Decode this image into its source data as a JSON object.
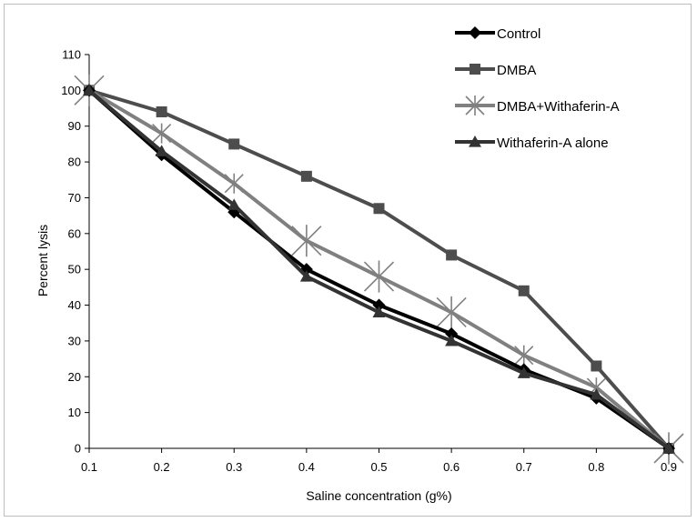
{
  "chart_data": {
    "type": "line",
    "title": "",
    "xlabel": "Saline concentration (g%)",
    "ylabel": "Percent lysis",
    "x": [
      0.1,
      0.2,
      0.3,
      0.4,
      0.5,
      0.6,
      0.7,
      0.8,
      0.9
    ],
    "x_tick_labels": [
      "0.1",
      "0.2",
      "0.3",
      "0.4",
      "0.5",
      "0.6",
      "0.7",
      "0.8",
      "0.9"
    ],
    "ylim": [
      0,
      110
    ],
    "y_ticks": [
      0,
      10,
      20,
      30,
      40,
      50,
      60,
      70,
      80,
      90,
      100,
      110
    ],
    "y_tick_labels": [
      "0",
      "10",
      "20",
      "30",
      "40",
      "50",
      "60",
      "70",
      "80",
      "90",
      "100",
      "110"
    ],
    "grid": false,
    "legend_position": "top-right",
    "series": [
      {
        "name": "Control",
        "color": "#000000",
        "marker": "diamond",
        "values": [
          100,
          82,
          66,
          50,
          40,
          32,
          22,
          14,
          0
        ]
      },
      {
        "name": "DMBA",
        "color": "#4d4d4d",
        "marker": "square",
        "values": [
          100,
          94,
          85,
          76,
          67,
          54,
          44,
          23,
          0
        ]
      },
      {
        "name": "DMBA+Withaferin-A",
        "color": "#808080",
        "marker": "star",
        "values": [
          100,
          88,
          74,
          58,
          48,
          38,
          26,
          17,
          0
        ]
      },
      {
        "name": "Withaferin-A alone",
        "color": "#333333",
        "marker": "triangle",
        "values": [
          100,
          83,
          68,
          48,
          38,
          30,
          21,
          15,
          0
        ]
      }
    ]
  }
}
